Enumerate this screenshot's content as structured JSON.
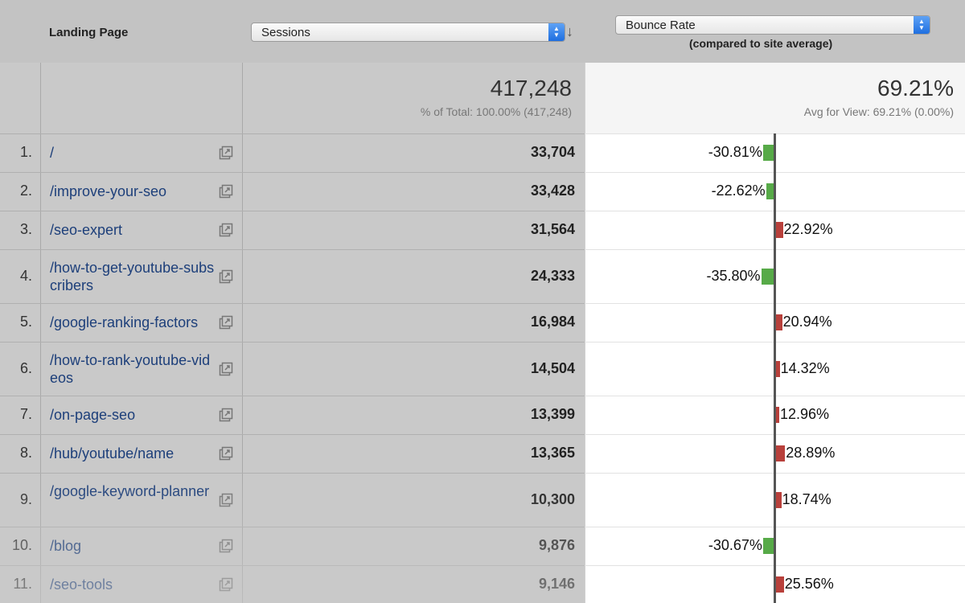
{
  "header": {
    "landing_page_label": "Landing Page",
    "primary_metric": "Sessions",
    "comparison_metric": "Bounce Rate",
    "comparison_note": "(compared to site average)"
  },
  "summary": {
    "sessions_total": "417,248",
    "sessions_sub": "% of Total: 100.00% (417,248)",
    "bounce_total": "69.21%",
    "bounce_sub": "Avg for View: 69.21% (0.00%)"
  },
  "colors": {
    "positive_bar": "#b8403b",
    "negative_bar": "#57aa48",
    "link": "#1d3f7a"
  },
  "rows": [
    {
      "num": "1.",
      "page": "/",
      "sessions": "33,704",
      "bounce_label": "-30.81%",
      "bounce_delta": -30.81
    },
    {
      "num": "2.",
      "page": "/improve-your-seo",
      "sessions": "33,428",
      "bounce_label": "-22.62%",
      "bounce_delta": -22.62
    },
    {
      "num": "3.",
      "page": "/seo-expert",
      "sessions": "31,564",
      "bounce_label": "22.92%",
      "bounce_delta": 22.92
    },
    {
      "num": "4.",
      "page": "/how-to-get-youtube-subscribers",
      "sessions": "24,333",
      "bounce_label": "-35.80%",
      "bounce_delta": -35.8
    },
    {
      "num": "5.",
      "page": "/google-ranking-factors",
      "sessions": "16,984",
      "bounce_label": "20.94%",
      "bounce_delta": 20.94
    },
    {
      "num": "6.",
      "page": "/how-to-rank-youtube-videos",
      "sessions": "14,504",
      "bounce_label": "14.32%",
      "bounce_delta": 14.32
    },
    {
      "num": "7.",
      "page": "/on-page-seo",
      "sessions": "13,399",
      "bounce_label": "12.96%",
      "bounce_delta": 12.96
    },
    {
      "num": "8.",
      "page": "/hub/youtube/name",
      "sessions": "13,365",
      "bounce_label": "28.89%",
      "bounce_delta": 28.89
    },
    {
      "num": "9.",
      "page": "/google-keyword-planner",
      "sessions": "10,300",
      "bounce_label": "18.74%",
      "bounce_delta": 18.74
    },
    {
      "num": "10.",
      "page": "/blog",
      "sessions": "9,876",
      "bounce_label": "-30.67%",
      "bounce_delta": -30.67
    },
    {
      "num": "11.",
      "page": "/seo-tools",
      "sessions": "9,146",
      "bounce_label": "25.56%",
      "bounce_delta": 25.56
    }
  ]
}
